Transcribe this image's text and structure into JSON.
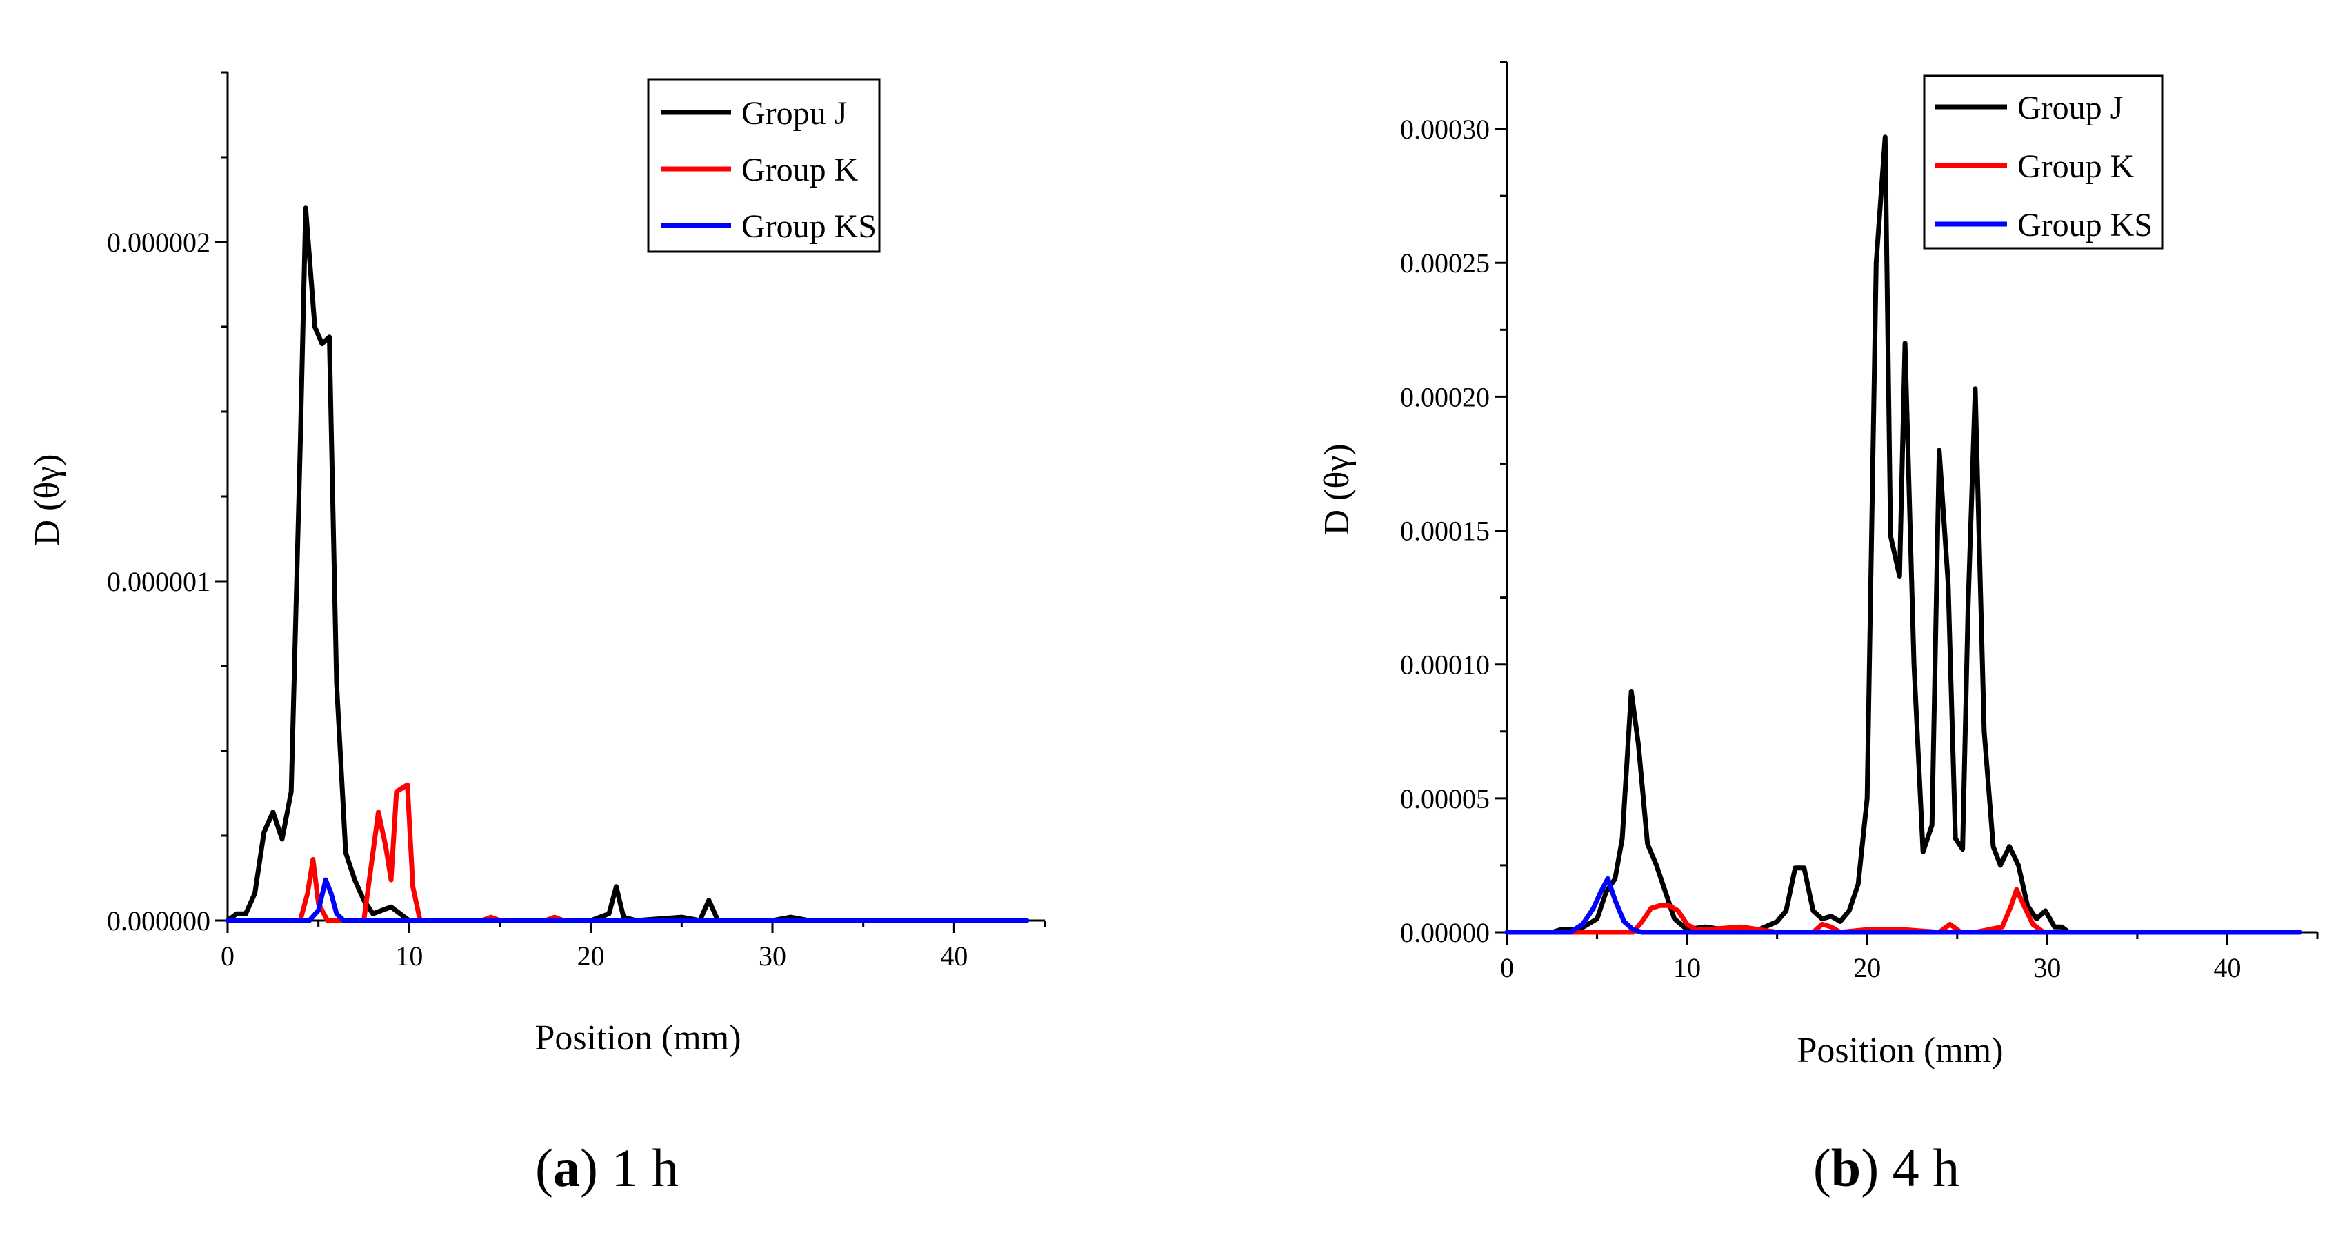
{
  "chart_data": [
    {
      "type": "line",
      "panel_label": "a",
      "caption_text": "1 h",
      "xlabel": "Position (mm)",
      "ylabel": "D (θγ)",
      "xlim": [
        0,
        45
      ],
      "ylim": [
        0,
        2.5e-06
      ],
      "xticks": [
        0,
        10,
        20,
        30,
        40
      ],
      "xtick_labels": [
        "0",
        "10",
        "20",
        "30",
        "40"
      ],
      "yticks": [
        0,
        1e-06,
        2e-06
      ],
      "ytick_labels": [
        "0.000000",
        "0.000001",
        "0.000002"
      ],
      "series": [
        {
          "name": "Gropu J",
          "color": "#000000",
          "x": [
            0,
            0.5,
            1,
            1.5,
            2,
            2.5,
            3,
            3.5,
            4,
            4.3,
            4.8,
            5.2,
            5.6,
            6,
            6.5,
            7,
            7.5,
            8,
            8.5,
            9,
            9.5,
            10,
            11,
            20,
            21,
            21.4,
            21.8,
            22.5,
            25,
            26,
            26.5,
            27,
            30,
            31,
            32,
            44
          ],
          "values": [
            0,
            2e-08,
            2e-08,
            8e-08,
            2.6e-07,
            3.2e-07,
            2.4e-07,
            3.8e-07,
            1.4e-06,
            2.1e-06,
            1.75e-06,
            1.7e-06,
            1.72e-06,
            7e-07,
            2e-07,
            1.2e-07,
            6e-08,
            2e-08,
            3e-08,
            4e-08,
            2e-08,
            0,
            0,
            0,
            2e-08,
            1e-07,
            1e-08,
            0,
            1e-08,
            0,
            6e-08,
            0,
            0,
            1e-08,
            0,
            0
          ]
        },
        {
          "name": "Group K",
          "color": "#ff0000",
          "x": [
            0,
            4,
            4.4,
            4.7,
            5,
            5.5,
            7.5,
            8,
            8.3,
            8.7,
            9,
            9.3,
            9.6,
            9.9,
            10.2,
            10.6,
            14,
            14.5,
            15,
            17.5,
            18,
            18.5,
            44
          ],
          "values": [
            0,
            0,
            8e-08,
            1.8e-07,
            5e-08,
            0,
            0,
            2e-07,
            3.2e-07,
            2.2e-07,
            1.2e-07,
            3.8e-07,
            3.9e-07,
            4e-07,
            1e-07,
            0,
            0,
            1e-08,
            0,
            0,
            1e-08,
            0,
            0
          ]
        },
        {
          "name": "Group KS",
          "color": "#0000ff",
          "x": [
            0,
            4.5,
            5,
            5.4,
            5.7,
            6,
            6.4,
            7,
            44
          ],
          "values": [
            0,
            0,
            3e-08,
            1.2e-07,
            8e-08,
            2e-08,
            0,
            0,
            0
          ]
        }
      ]
    },
    {
      "type": "line",
      "panel_label": "b",
      "caption_text": "4 h",
      "xlabel": "Position (mm)",
      "ylabel": "D (θγ)",
      "xlim": [
        0,
        45
      ],
      "ylim": [
        0,
        0.000325
      ],
      "xticks": [
        0,
        10,
        20,
        30,
        40
      ],
      "xtick_labels": [
        "0",
        "10",
        "20",
        "30",
        "40"
      ],
      "yticks": [
        0,
        5e-05,
        0.0001,
        0.00015,
        0.0002,
        0.00025,
        0.0003
      ],
      "ytick_labels": [
        "0.00000",
        "0.00005",
        "0.00010",
        "0.00015",
        "0.00020",
        "0.00025",
        "0.00030"
      ],
      "series": [
        {
          "name": "Group J",
          "color": "#000000",
          "x": [
            0,
            2.5,
            3,
            4,
            5,
            5.5,
            6,
            6.4,
            6.9,
            7.3,
            7.8,
            8.3,
            8.8,
            9.3,
            10,
            11,
            12,
            13,
            14,
            15,
            15.5,
            16,
            16.5,
            17,
            17.5,
            18,
            18.5,
            19,
            19.5,
            20,
            20.5,
            21,
            21.3,
            21.8,
            22.1,
            22.6,
            23.1,
            23.6,
            24,
            24.5,
            24.9,
            25.3,
            25.6,
            26,
            26.5,
            27,
            27.4,
            27.9,
            28.4,
            28.9,
            29.4,
            29.9,
            30.4,
            30.8,
            31.2,
            32,
            44
          ],
          "values": [
            0,
            0,
            1e-06,
            1e-06,
            5e-06,
            1.5e-05,
            2e-05,
            3.5e-05,
            9e-05,
            7e-05,
            3.3e-05,
            2.5e-05,
            1.5e-05,
            5e-06,
            1e-06,
            2e-06,
            1e-06,
            1e-06,
            1e-06,
            4e-06,
            8e-06,
            2.4e-05,
            2.4e-05,
            8e-06,
            5e-06,
            6e-06,
            4e-06,
            8e-06,
            1.8e-05,
            5e-05,
            0.00025,
            0.000297,
            0.000148,
            0.000133,
            0.00022,
            0.0001,
            3e-05,
            4e-05,
            0.00018,
            0.00013,
            3.5e-05,
            3.1e-05,
            0.00012,
            0.000203,
            7.5e-05,
            3.2e-05,
            2.5e-05,
            3.2e-05,
            2.5e-05,
            1e-05,
            5e-06,
            8e-06,
            2e-06,
            2e-06,
            0,
            0,
            0
          ]
        },
        {
          "name": "Group K",
          "color": "#ff0000",
          "x": [
            0,
            7,
            7.5,
            8,
            8.5,
            9,
            9.5,
            10,
            10.5,
            11,
            13,
            14,
            15,
            17,
            17.5,
            18,
            18.5,
            20,
            22,
            24,
            24.6,
            25.2,
            26,
            27.5,
            28,
            28.3,
            28.7,
            29.2,
            29.8,
            31,
            44
          ],
          "values": [
            0,
            0,
            4e-06,
            9e-06,
            1e-05,
            1e-05,
            8e-06,
            3e-06,
            1e-06,
            1e-06,
            2e-06,
            1e-06,
            0,
            0,
            3e-06,
            2e-06,
            0,
            1e-06,
            1e-06,
            0,
            3e-06,
            0,
            0,
            2e-06,
            1e-05,
            1.6e-05,
            1e-05,
            3e-06,
            0,
            0,
            0
          ]
        },
        {
          "name": "Group KS",
          "color": "#0000ff",
          "x": [
            0,
            3.5,
            4.2,
            4.8,
            5.2,
            5.6,
            6,
            6.5,
            7,
            7.5,
            44
          ],
          "values": [
            0,
            0,
            3e-06,
            9e-06,
            1.5e-05,
            2e-05,
            1.2e-05,
            4e-06,
            1e-06,
            0,
            0
          ]
        }
      ]
    }
  ]
}
